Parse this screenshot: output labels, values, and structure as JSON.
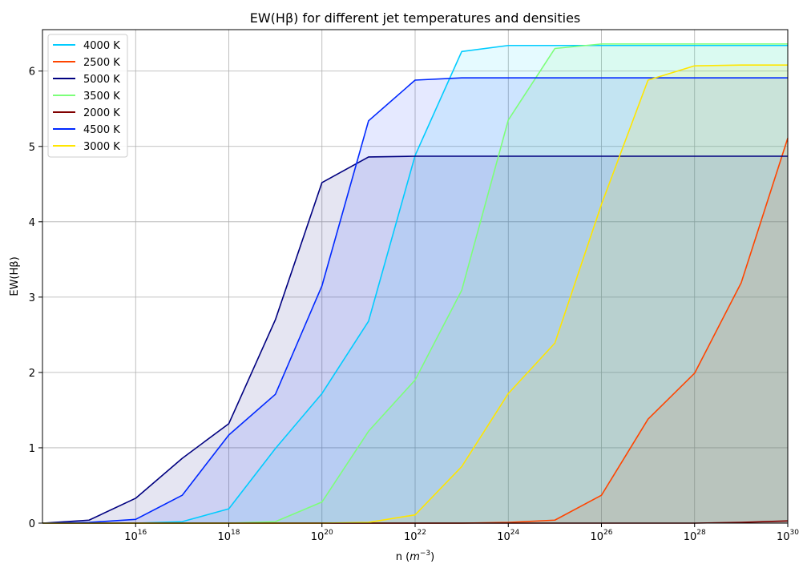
{
  "chart_data": {
    "type": "area",
    "title": "EW(Hβ) for different jet temperatures and densities",
    "xlabel_prefix": "n (",
    "xlabel_unit_base": "m",
    "xlabel_unit_exp": "−3",
    "xlabel_suffix": ")",
    "ylabel": "EW(Hβ)",
    "x_scale": "log10",
    "x_exponents": [
      14,
      15,
      16,
      17,
      18,
      19,
      20,
      21,
      22,
      23,
      24,
      25,
      26,
      27,
      28,
      29,
      30
    ],
    "xlim_exponents": [
      14,
      30
    ],
    "ylim": [
      0,
      6.55
    ],
    "x_tick_exponents": [
      "16",
      "18",
      "20",
      "22",
      "24",
      "26",
      "28",
      "30"
    ],
    "x_tick_base": "10",
    "y_ticks": [
      "0",
      "1",
      "2",
      "3",
      "4",
      "5",
      "6"
    ],
    "grid": true,
    "legend_position": "top-left",
    "series": [
      {
        "name": "4000 K",
        "color": "#00ccff",
        "values": [
          0,
          0,
          0,
          0.02,
          0.19,
          0.99,
          1.72,
          2.68,
          4.88,
          6.26,
          6.34,
          6.34,
          6.34,
          6.34,
          6.34,
          6.34,
          6.34
        ]
      },
      {
        "name": "2500 K",
        "color": "#ff4500",
        "values": [
          0,
          0,
          0,
          0,
          0,
          0,
          0,
          0,
          0,
          0,
          0.01,
          0.04,
          0.37,
          1.38,
          1.99,
          3.19,
          5.11
        ]
      },
      {
        "name": "5000 K",
        "color": "#000080",
        "values": [
          0,
          0.04,
          0.33,
          0.86,
          1.32,
          2.7,
          4.52,
          4.86,
          4.87,
          4.87,
          4.87,
          4.87,
          4.87,
          4.87,
          4.87,
          4.87,
          4.87
        ]
      },
      {
        "name": "3500 K",
        "color": "#7dff7a",
        "values": [
          0,
          0,
          0,
          0,
          0,
          0.02,
          0.28,
          1.22,
          1.9,
          3.09,
          5.35,
          6.3,
          6.36,
          6.36,
          6.36,
          6.36,
          6.36
        ]
      },
      {
        "name": "2000 K",
        "color": "#800000",
        "values": [
          0,
          0,
          0,
          0,
          0,
          0,
          0,
          0,
          0,
          0,
          0,
          0,
          0,
          0,
          0,
          0.01,
          0.03
        ]
      },
      {
        "name": "4500 K",
        "color": "#0028ff",
        "values": [
          0,
          0.01,
          0.05,
          0.37,
          1.17,
          1.71,
          3.15,
          5.34,
          5.88,
          5.91,
          5.91,
          5.91,
          5.91,
          5.91,
          5.91,
          5.91,
          5.91
        ]
      },
      {
        "name": "3000 K",
        "color": "#ffe600",
        "values": [
          0,
          0,
          0,
          0,
          0,
          0,
          0,
          0.01,
          0.11,
          0.75,
          1.72,
          2.39,
          4.23,
          5.88,
          6.07,
          6.08,
          6.08
        ]
      }
    ]
  }
}
